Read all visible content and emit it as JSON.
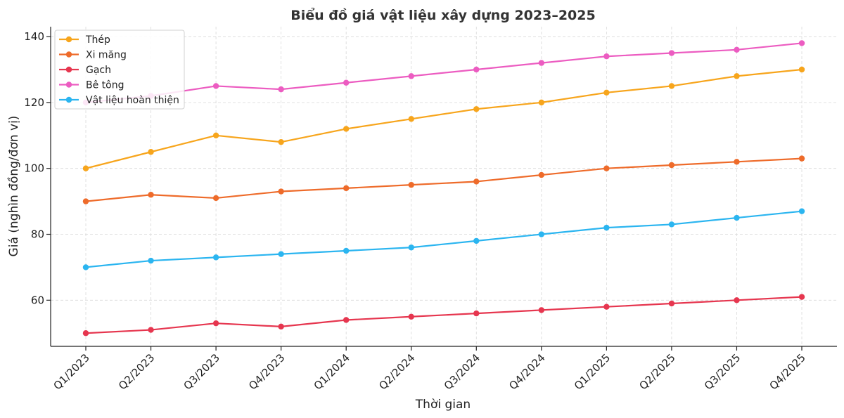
{
  "chart_data": {
    "type": "line",
    "title": "Biểu đồ giá vật liệu xây dựng 2023–2025",
    "xlabel": "Thời gian",
    "ylabel": "Giá (nghìn đồng/đơn vị)",
    "categories": [
      "Q1/2023",
      "Q2/2023",
      "Q3/2023",
      "Q4/2023",
      "Q1/2024",
      "Q2/2024",
      "Q3/2024",
      "Q4/2024",
      "Q1/2025",
      "Q2/2025",
      "Q3/2025",
      "Q4/2025"
    ],
    "ylim": [
      46,
      143
    ],
    "yticks": [
      60,
      80,
      100,
      120,
      140
    ],
    "grid": true,
    "legend_position": "top-left",
    "series": [
      {
        "name": "Thép",
        "color": "#F7A51C",
        "values": [
          100,
          105,
          110,
          108,
          112,
          115,
          118,
          120,
          123,
          125,
          128,
          130
        ]
      },
      {
        "name": "Xi măng",
        "color": "#EE6B2A",
        "values": [
          90,
          92,
          91,
          93,
          94,
          95,
          96,
          98,
          100,
          101,
          102,
          103
        ]
      },
      {
        "name": "Gạch",
        "color": "#E6364F",
        "values": [
          50,
          51,
          53,
          52,
          54,
          55,
          56,
          57,
          58,
          59,
          60,
          61
        ]
      },
      {
        "name": "Bê tông",
        "color": "#EC5CC1",
        "values": [
          120,
          122,
          125,
          124,
          126,
          128,
          130,
          132,
          134,
          135,
          136,
          138
        ]
      },
      {
        "name": "Vật liệu hoàn thiện",
        "color": "#2BB5F0",
        "values": [
          70,
          72,
          73,
          74,
          75,
          76,
          78,
          80,
          82,
          83,
          85,
          87
        ]
      }
    ]
  }
}
